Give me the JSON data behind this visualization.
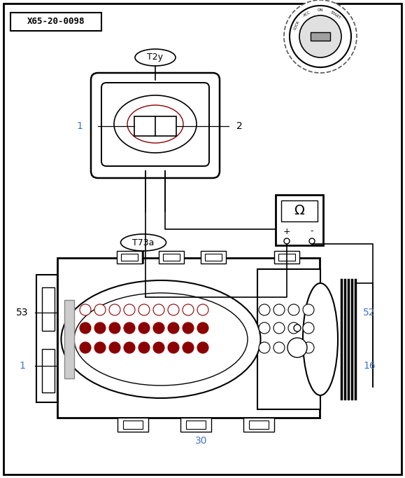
{
  "bg_color": "#ffffff",
  "line_color": "#000000",
  "dark_red": "#8B0000",
  "blue_label": "#4472C4",
  "label_x65": "X65-20-0098",
  "label_t2y": "T2y",
  "label_t73a": "T73a",
  "title_fontsize": 10,
  "small_fontsize": 8
}
